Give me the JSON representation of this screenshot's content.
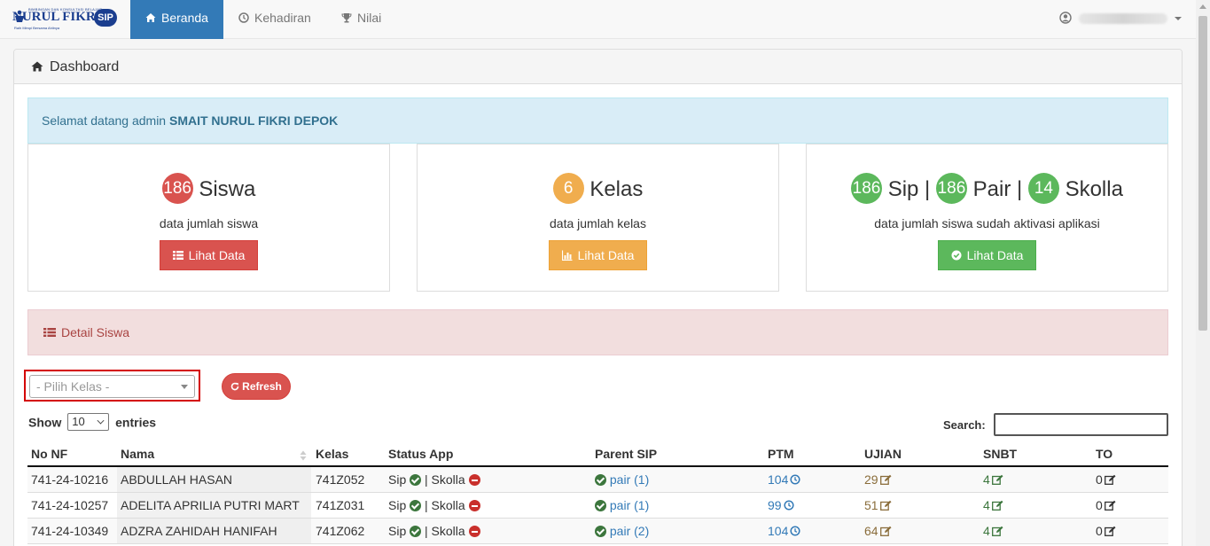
{
  "brand": {
    "top_text": "BIMBINGAN DAN KONSULTASI BELAJAR",
    "name": "NURUL FIKRI",
    "badge": "SIP",
    "tagline": "Raih Mimpi Bersama Ahlinya"
  },
  "nav": {
    "items": [
      {
        "label": "Beranda",
        "icon": "home-icon",
        "active": true
      },
      {
        "label": "Kehadiran",
        "icon": "clock-icon",
        "active": false
      },
      {
        "label": "Nilai",
        "icon": "trophy-icon",
        "active": false
      }
    ],
    "user_icon": "user-circle-icon"
  },
  "panel": {
    "title": "Dashboard"
  },
  "welcome": {
    "text": "Selamat datang admin",
    "school": "SMAIT NURUL FIKRI DEPOK"
  },
  "cards": {
    "siswa": {
      "count": "186",
      "label": "Siswa",
      "sub": "data jumlah siswa",
      "button": "Lihat Data"
    },
    "kelas": {
      "count": "6",
      "label": "Kelas",
      "sub": "data jumlah kelas",
      "button": "Lihat Data"
    },
    "aktivasi": {
      "sip_count": "186",
      "sip_label": "Sip |",
      "pair_count": "186",
      "pair_label": "Pair |",
      "skolla_count": "14",
      "skolla_label": "Skolla",
      "sub": "data jumlah siswa sudah aktivasi aplikasi",
      "button": "Lihat Data"
    }
  },
  "detail": {
    "title": "Detail Siswa",
    "select_placeholder": "- Pilih Kelas -",
    "refresh": "Refresh",
    "show": "Show",
    "entries_value": "10",
    "entries": "entries",
    "search": "Search:"
  },
  "table": {
    "headers": [
      "No NF",
      "Nama",
      "Kelas",
      "Status App",
      "Parent SIP",
      "PTM",
      "UJIAN",
      "SNBT",
      "TO"
    ],
    "rows": [
      {
        "no": "741-24-10216",
        "nama": "ABDULLAH HASAN",
        "kelas": "741Z052",
        "sip": "Sip",
        "sep": "| Skolla",
        "pair": "pair (1)",
        "ptm": "104",
        "ujian": "29",
        "snbt": "4",
        "to": "0"
      },
      {
        "no": "741-24-10257",
        "nama": "ADELITA APRILIA PUTRI MART",
        "kelas": "741Z031",
        "sip": "Sip",
        "sep": "| Skolla",
        "pair": "pair (1)",
        "ptm": "99",
        "ujian": "51",
        "snbt": "4",
        "to": "0"
      },
      {
        "no": "741-24-10349",
        "nama": "ADZRA ZAHIDAH HANIFAH",
        "kelas": "741Z062",
        "sip": "Sip",
        "sep": "| Skolla",
        "pair": "pair (2)",
        "ptm": "104",
        "ujian": "64",
        "snbt": "4",
        "to": "0"
      }
    ]
  },
  "colors": {
    "primary": "#337ab7",
    "danger": "#d9534f",
    "warning": "#f0ad4e",
    "success": "#5cb85c"
  }
}
